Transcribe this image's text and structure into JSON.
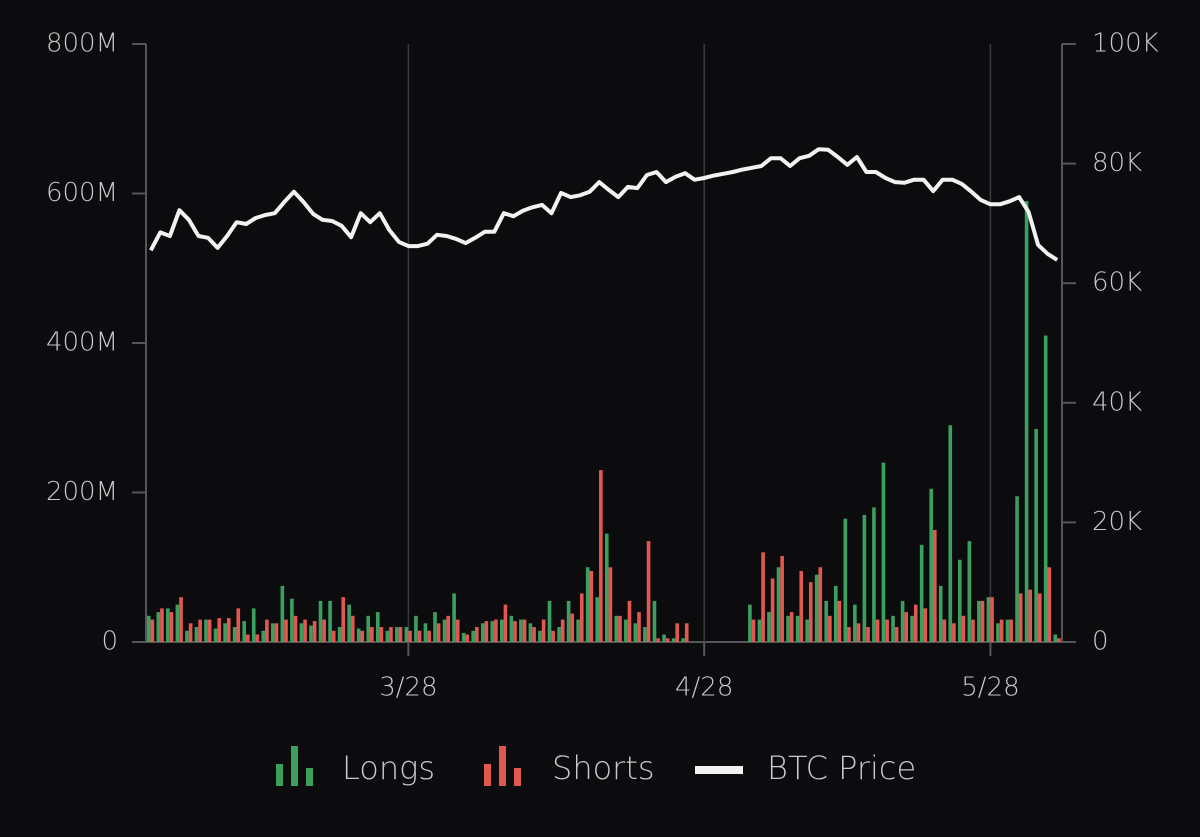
{
  "chart_data": {
    "type": "bar-line",
    "categories": [
      null,
      null,
      null,
      null,
      null,
      null,
      null,
      null,
      null,
      null,
      null,
      null,
      null,
      null,
      null,
      null,
      null,
      null,
      null,
      null,
      null,
      null,
      null,
      null,
      null,
      null,
      null,
      "3/28",
      null,
      null,
      null,
      null,
      null,
      null,
      null,
      null,
      null,
      null,
      null,
      null,
      null,
      null,
      null,
      null,
      null,
      null,
      null,
      null,
      null,
      null,
      null,
      null,
      null,
      null,
      null,
      null,
      null,
      null,
      "4/28",
      null,
      null,
      null,
      null,
      null,
      null,
      null,
      null,
      null,
      null,
      null,
      null,
      null,
      null,
      null,
      null,
      null,
      null,
      null,
      null,
      null,
      null,
      null,
      null,
      null,
      null,
      null,
      null,
      null,
      "5/28",
      null,
      null,
      null,
      null,
      null,
      null,
      null
    ],
    "series": [
      {
        "name": "Longs",
        "color": "#3a9f5f",
        "axis": "y",
        "values": [
          35,
          40,
          45,
          50,
          15,
          20,
          30,
          18,
          25,
          20,
          28,
          45,
          15,
          25,
          75,
          58,
          25,
          22,
          55,
          55,
          20,
          50,
          18,
          35,
          40,
          15,
          20,
          20,
          35,
          25,
          40,
          30,
          65,
          12,
          15,
          25,
          28,
          30,
          35,
          30,
          25,
          15,
          55,
          20,
          55,
          30,
          100,
          60,
          145,
          35,
          30,
          25,
          20,
          55,
          10,
          5,
          5,
          0,
          0,
          0,
          0,
          0,
          0,
          50,
          30,
          40,
          100,
          35,
          35,
          30,
          90,
          55,
          75,
          165,
          50,
          170,
          180,
          240,
          35,
          55,
          35,
          130,
          205,
          75,
          290,
          110,
          135,
          55,
          60,
          25,
          30,
          195,
          590,
          285,
          410,
          10
        ]
      },
      {
        "name": "Shorts",
        "color": "#e0584f",
        "axis": "y",
        "values": [
          30,
          45,
          40,
          60,
          25,
          30,
          30,
          32,
          32,
          45,
          10,
          10,
          30,
          25,
          30,
          35,
          30,
          28,
          30,
          15,
          60,
          35,
          15,
          20,
          20,
          20,
          20,
          15,
          15,
          15,
          25,
          35,
          30,
          10,
          20,
          28,
          30,
          50,
          28,
          30,
          20,
          30,
          15,
          30,
          38,
          65,
          95,
          230,
          100,
          35,
          55,
          40,
          135,
          5,
          5,
          25,
          25,
          0,
          0,
          0,
          0,
          0,
          0,
          30,
          120,
          85,
          115,
          40,
          95,
          80,
          100,
          35,
          55,
          20,
          25,
          20,
          30,
          30,
          20,
          40,
          50,
          45,
          150,
          30,
          25,
          35,
          30,
          55,
          60,
          30,
          30,
          65,
          70,
          65,
          100,
          5
        ]
      },
      {
        "name": "BTC Price",
        "color": "#f2f2f2",
        "axis": "y2",
        "values": [
          65500,
          68500,
          67900,
          72200,
          70600,
          67900,
          67600,
          65900,
          67900,
          70200,
          69900,
          70900,
          71400,
          71700,
          73600,
          75300,
          73600,
          71600,
          70600,
          70400,
          69600,
          67700,
          71700,
          70200,
          71700,
          68900,
          66900,
          66200,
          66200,
          66600,
          68100,
          67900,
          67400,
          66700,
          67600,
          68600,
          68600,
          71700,
          71200,
          72100,
          72700,
          73100,
          71700,
          75100,
          74400,
          74700,
          75300,
          76900,
          75600,
          74400,
          76100,
          75900,
          78100,
          78600,
          76900,
          77800,
          78400,
          77300,
          77600,
          78000,
          78300,
          78600,
          79000,
          79300,
          79600,
          80900,
          80900,
          79600,
          80900,
          81300,
          82400,
          82300,
          81100,
          79800,
          81100,
          78600,
          78600,
          77600,
          76900,
          76800,
          77300,
          77300,
          75400,
          77300,
          77300,
          76600,
          75300,
          73900,
          73200,
          73200,
          73700,
          74400,
          71900,
          66400,
          64900,
          63900
        ]
      }
    ],
    "ylim": [
      0,
      800
    ],
    "yticks": [
      0,
      {
        "value": 200,
        "label": "200M"
      },
      {
        "value": 400,
        "label": "400M"
      },
      {
        "value": 600,
        "label": "600M"
      },
      {
        "value": 800,
        "label": "800M"
      }
    ],
    "y2lim": [
      0,
      100000
    ],
    "y2ticks": [
      0,
      {
        "value": 20000,
        "label": "20K"
      },
      {
        "value": 40000,
        "label": "40K"
      },
      {
        "value": 60000,
        "label": "60K"
      },
      {
        "value": 80000,
        "label": "80K"
      },
      {
        "value": 100000,
        "label": "100K"
      }
    ],
    "legend": "bottom"
  }
}
